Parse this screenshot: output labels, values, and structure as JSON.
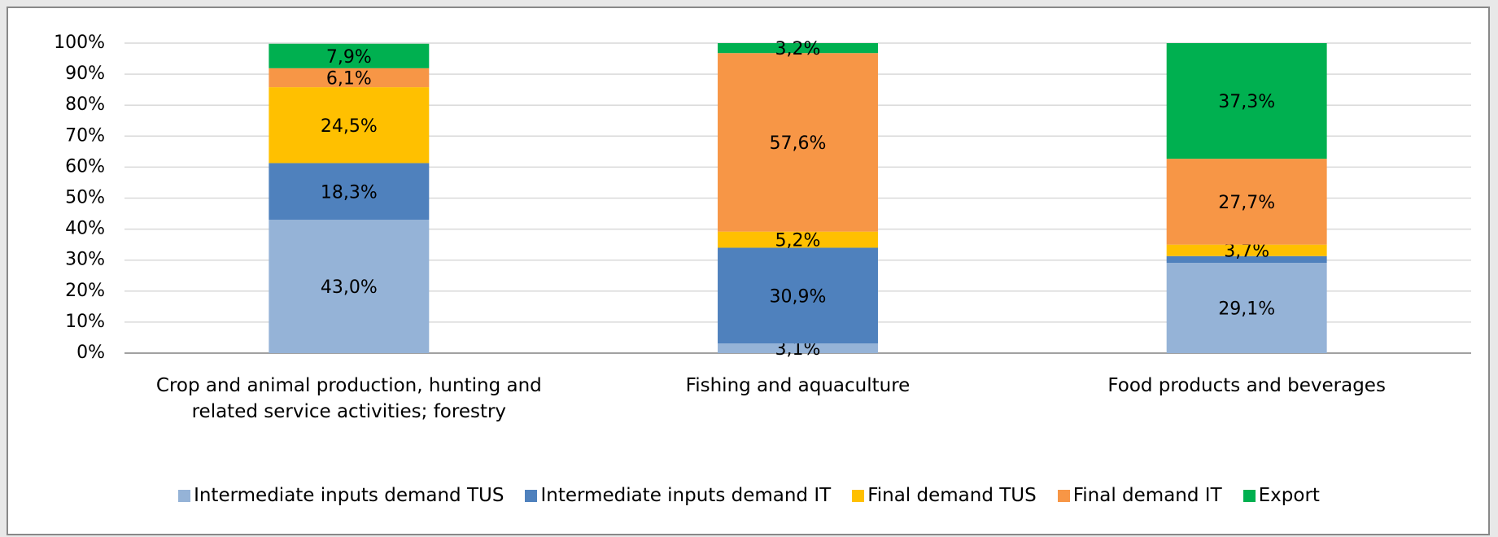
{
  "chart_data": {
    "type": "stacked_bar",
    "categories": [
      "Crop and animal production, hunting and related service activities; forestry",
      "Fishing and aquaculture",
      "Food products and beverages"
    ],
    "series": [
      {
        "name": "Intermediate inputs demand TUS",
        "color": "#95b3d7",
        "values": [
          43.0,
          3.1,
          29.1
        ],
        "value_labels": [
          "43,0%",
          "3,1%",
          "29,1%"
        ]
      },
      {
        "name": "Intermediate inputs demand IT",
        "color": "#4f81bd",
        "values": [
          18.3,
          30.9,
          2.2
        ],
        "value_labels": [
          "18,3%",
          "30,9%",
          null
        ]
      },
      {
        "name": "Final demand TUS",
        "color": "#ffc000",
        "values": [
          24.5,
          5.2,
          3.7
        ],
        "value_labels": [
          "24,5%",
          "5,2%",
          "3,7%"
        ]
      },
      {
        "name": "Final demand IT",
        "color": "#f79646",
        "values": [
          6.1,
          57.6,
          27.7
        ],
        "value_labels": [
          "6,1%",
          "57,6%",
          "27,7%"
        ]
      },
      {
        "name": "Export",
        "color": "#00b050",
        "values": [
          7.9,
          3.2,
          37.3
        ],
        "value_labels": [
          "7,9%",
          "3,2%",
          "37,3%"
        ]
      }
    ],
    "ylim": [
      0,
      100
    ],
    "yticks": [
      {
        "value": 0,
        "label": "0%"
      },
      {
        "value": 10,
        "label": "10%"
      },
      {
        "value": 20,
        "label": "20%"
      },
      {
        "value": 30,
        "label": "30%"
      },
      {
        "value": 40,
        "label": "40%"
      },
      {
        "value": 50,
        "label": "50%"
      },
      {
        "value": 60,
        "label": "60%"
      },
      {
        "value": 70,
        "label": "70%"
      },
      {
        "value": 80,
        "label": "80%"
      },
      {
        "value": 90,
        "label": "90%"
      },
      {
        "value": 100,
        "label": "100%"
      }
    ],
    "grid": true,
    "legend": "bottom"
  }
}
